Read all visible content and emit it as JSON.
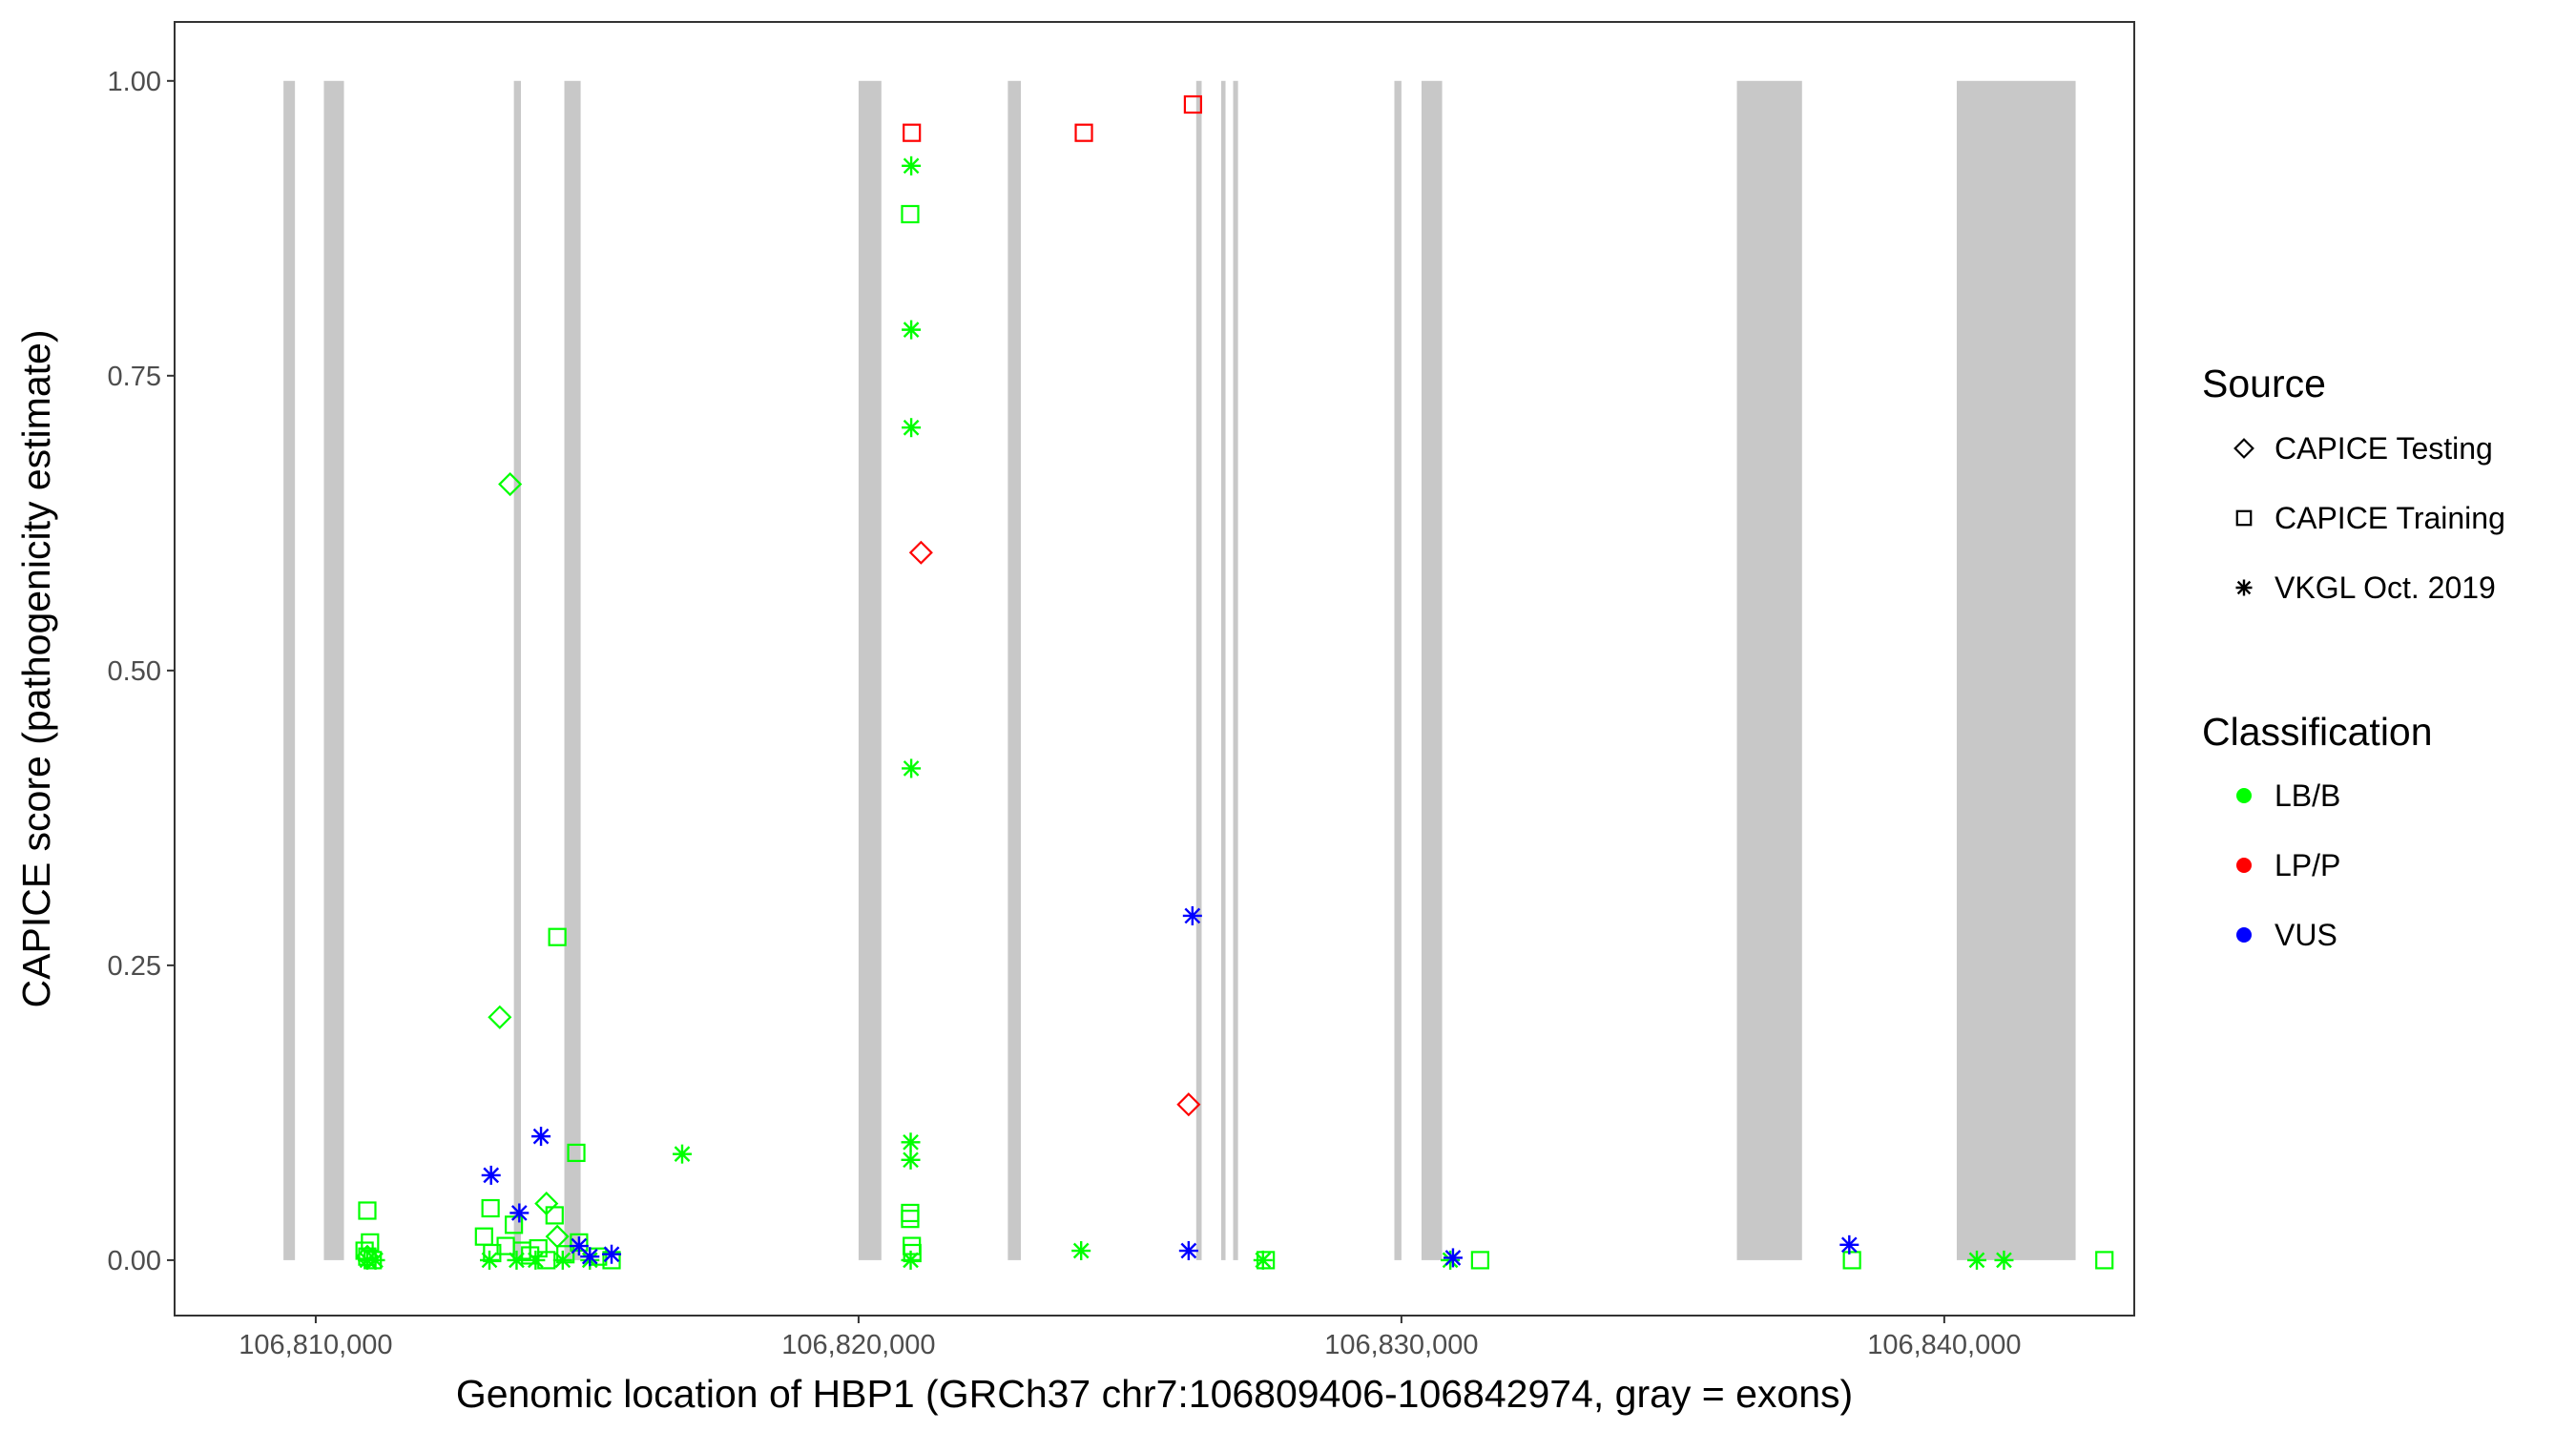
{
  "chart_data": {
    "type": "scatter",
    "xlabel": "Genomic location of HBP1 (GRCh37 chr7:106809406-106842974, gray = exons)",
    "ylabel": "CAPICE score (pathogenicity estimate)",
    "xlim": [
      106807400,
      106843500
    ],
    "ylim": [
      -0.047,
      1.05
    ],
    "x_ticks": [
      106810000,
      106820000,
      106830000,
      106840000
    ],
    "x_tick_labels": [
      "106,810,000",
      "106,820,000",
      "106,830,000",
      "106,840,000"
    ],
    "y_ticks": [
      0,
      0.25,
      0.5,
      0.75,
      1.0
    ],
    "y_tick_labels": [
      "0.00",
      "0.25",
      "0.50",
      "0.75",
      "1.00"
    ],
    "grid": false,
    "exon_color": "#c8c8c8",
    "exons": [
      [
        106809406,
        106809617
      ],
      [
        106810150,
        106810520
      ],
      [
        106813650,
        106813780
      ],
      [
        106814580,
        106814880
      ],
      [
        106820000,
        106820420
      ],
      [
        106822750,
        106822990
      ],
      [
        106826220,
        106826320
      ],
      [
        106826680,
        106826760
      ],
      [
        106826900,
        106826990
      ],
      [
        106829870,
        106830000
      ],
      [
        106830370,
        106830750
      ],
      [
        106836180,
        106837380
      ],
      [
        106840230,
        106842420
      ]
    ],
    "legend": {
      "position": "right",
      "source": {
        "title": "Source",
        "entries": [
          {
            "label": "CAPICE Testing",
            "shape": "diamond"
          },
          {
            "label": "CAPICE Training",
            "shape": "square"
          },
          {
            "label": "VKGL Oct. 2019",
            "shape": "star"
          }
        ]
      },
      "classification": {
        "title": "Classification",
        "entries": [
          {
            "label": "LB/B",
            "color": "#00ff00"
          },
          {
            "label": "LP/P",
            "color": "#ff0000"
          },
          {
            "label": "VUS",
            "color": "#0000ff"
          }
        ]
      }
    },
    "series": [
      {
        "source": "CAPICE Training",
        "class": "LP/P",
        "shape": "square",
        "color": "#ff0000",
        "x": [
          106820980,
          106824150,
          106826160
        ],
        "y": [
          0.956,
          0.956,
          0.98
        ]
      },
      {
        "source": "CAPICE Testing",
        "class": "LP/P",
        "shape": "diamond",
        "color": "#ff0000",
        "x": [
          106821150,
          106826080
        ],
        "y": [
          0.6,
          0.132
        ]
      },
      {
        "source": "CAPICE Testing",
        "class": "LB/B",
        "shape": "diamond",
        "color": "#00ff00",
        "x": [
          106813580,
          106813390,
          106814250,
          106814450,
          106810950
        ],
        "y": [
          0.658,
          0.206,
          0.048,
          0.02,
          0.003
        ]
      },
      {
        "source": "CAPICE Training",
        "class": "LB/B",
        "shape": "square",
        "color": "#00ff00",
        "x": [
          106820950,
          106814450,
          106814800,
          106810950,
          106813220,
          106820950,
          106820950,
          106820980,
          106820990,
          106813100,
          106814400,
          106814850,
          106811000,
          106810900,
          106810950,
          106811050,
          106813250,
          106813500,
          106813650,
          106813800,
          106813950,
          106814100,
          106814250,
          106814600,
          106815200,
          106815450,
          106827500,
          106831450,
          106838300,
          106842950
        ],
        "y": [
          0.887,
          0.274,
          0.091,
          0.042,
          0.044,
          0.04,
          0.035,
          0.012,
          0.006,
          0.02,
          0.038,
          0.015,
          0.015,
          0.008,
          0.003,
          0.0,
          0.006,
          0.012,
          0.03,
          0.008,
          0.004,
          0.01,
          0.0,
          0.005,
          0.003,
          0.0,
          0.0,
          0.0,
          0.0,
          0.0
        ]
      },
      {
        "source": "VKGL Oct. 2019",
        "class": "LB/B",
        "shape": "star",
        "color": "#00ff00",
        "x": [
          106820970,
          106820970,
          106820970,
          106820970,
          106816750,
          106820960,
          106820960,
          106820960,
          106824100,
          106827450,
          106830900,
          106840600,
          106841100,
          106810950,
          106811100,
          106813200,
          106813700,
          106814050,
          106814550,
          106815050
        ],
        "y": [
          0.928,
          0.789,
          0.706,
          0.417,
          0.09,
          0.1,
          0.085,
          0.0,
          0.008,
          0.0,
          0.0,
          0.0,
          0.0,
          0.0,
          0.0,
          0.0,
          0.0,
          0.0,
          0.0,
          0.0
        ]
      },
      {
        "source": "VKGL Oct. 2019",
        "class": "VUS",
        "shape": "star",
        "color": "#0000ff",
        "x": [
          106826150,
          106814150,
          106813230,
          106813750,
          106814850,
          106815450,
          106815050,
          106826080,
          106830950,
          106838250
        ],
        "y": [
          0.292,
          0.105,
          0.072,
          0.04,
          0.012,
          0.005,
          0.003,
          0.008,
          0.002,
          0.013
        ]
      }
    ]
  }
}
